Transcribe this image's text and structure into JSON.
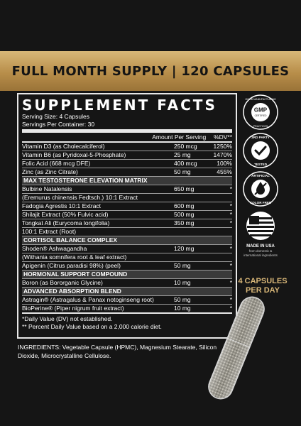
{
  "banner": {
    "text": "FULL MONTH SUPPLY | 120 CAPSULES"
  },
  "facts": {
    "title": "SUPPLEMENT FACTS",
    "serving_size": "Serving Size: 4 Capsules",
    "servings_per_container": "Servings Per Container: 30",
    "amount_header": "Amount Per Serving",
    "dv_header": "%DV**",
    "vitamins": [
      {
        "name": "Vitamin D3 (as Cholecalciferol)",
        "amount": "250 mcg",
        "dv": "1250%"
      },
      {
        "name": "Vitamin B6 (as Pyridoxal-5-Phosphate)",
        "amount": "25 mg",
        "dv": "1470%"
      },
      {
        "name": "Folic Acid (668 mcg DFE)",
        "amount": "400 mcg",
        "dv": "100%"
      },
      {
        "name": "Zinc (as Zinc Citrate)",
        "amount": "50 mg",
        "dv": "455%"
      }
    ],
    "sections": [
      {
        "title": "MAX TESTOSTERONE ELEVATION MATRIX",
        "rows": [
          {
            "name": "Bulbine Natalensis",
            "amount": "650 mg",
            "dv": "*"
          },
          {
            "name": "(Eremurus chinensis Fedtsch.) 10:1 Extract",
            "amount": "",
            "dv": ""
          },
          {
            "name": "Fadogia Agrestis 10:1 Extract",
            "amount": "600 mg",
            "dv": "*"
          },
          {
            "name": "Shilajit Extract (50% Fulvic acid)",
            "amount": "500 mg",
            "dv": "*"
          },
          {
            "name": "Tongkat Ali (Eurycoma longifolia)",
            "amount": "350 mg",
            "dv": "*"
          },
          {
            "name": "100:1 Extract (Root)",
            "amount": "",
            "dv": ""
          }
        ]
      },
      {
        "title": "CORTISOL BALANCE COMPLEX",
        "rows": [
          {
            "name": "Shoden® Ashwagandha",
            "amount": "120 mg",
            "dv": "*"
          },
          {
            "name": "(Withania somnifera root & leaf extract)",
            "amount": "",
            "dv": ""
          },
          {
            "name": "Apigenin (Citrus paradisi 98%) (peel)",
            "amount": "50 mg",
            "dv": "*"
          }
        ]
      },
      {
        "title": "HORMONAL SUPPORT COMPOUND",
        "rows": [
          {
            "name": "Boron (as Bororganic Glycine)",
            "amount": "10 mg",
            "dv": "*"
          }
        ]
      },
      {
        "title": "ADVANCED ABSORPTION BLEND",
        "rows": [
          {
            "name": "Astragin® (Astragalus & Panax notoginseng root)",
            "amount": "50 mg",
            "dv": "*"
          },
          {
            "name": "BioPerine® (Piper nigrum fruit extract)",
            "amount": "10 mg",
            "dv": "*"
          }
        ]
      }
    ],
    "footnote_1": "*Daily Value (DV) not established.",
    "footnote_2": "** Percent Daily Value based on a 2,000 calorie diet."
  },
  "ingredients": "INGREDIENTS: Vegetable Capsule (HPMC), Magnesium Stearate, Silicon Dioxide, Microcrystalline Cellulose.",
  "badges": {
    "gmp_top": "GOOD MANUFACTURING",
    "gmp_center": "GMP",
    "gmp_certified": "CERTIFIED",
    "gmp_bottom": "PRACTICES",
    "third_party_top": "3RD PARTY",
    "third_party_bottom": "TESTED",
    "artificial_top": "ARTIFICIAL",
    "artificial_bottom": "COLOR FREE",
    "usa_caption": "MADE IN USA",
    "usa_sub": "from domestic & international ingredients"
  },
  "dosage": {
    "line1": "4 CAPSULES",
    "line2": "PER DAY"
  },
  "colors": {
    "gold": "#c9a25d",
    "background": "#151515",
    "section_fill": "#3a3a3a"
  }
}
